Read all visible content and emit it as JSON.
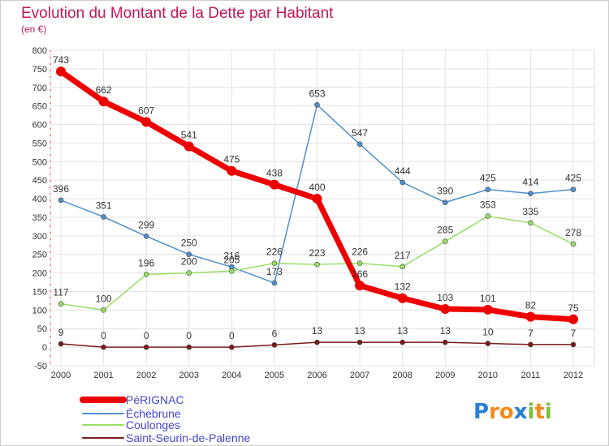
{
  "chart_data": {
    "type": "line",
    "title": "Evolution du Montant de la Dette par Habitant",
    "subtitle": "(en €)",
    "x": [
      "2000",
      "2001",
      "2002",
      "2003",
      "2004",
      "2005",
      "2006",
      "2007",
      "2008",
      "2009",
      "2010",
      "2011",
      "2012"
    ],
    "ylim": [
      -50,
      800
    ],
    "yticks": [
      -50,
      0,
      50,
      100,
      150,
      200,
      250,
      300,
      350,
      400,
      450,
      500,
      550,
      600,
      650,
      700,
      750,
      800
    ],
    "grid": true,
    "legend_position": "bottom-left",
    "series": [
      {
        "name": "PéRIGNAC",
        "color": "#ee0000",
        "values": [
          743,
          662,
          607,
          541,
          475,
          438,
          400,
          166,
          132,
          103,
          101,
          82,
          75
        ]
      },
      {
        "name": "Échebrune",
        "color": "#4f8fcc",
        "values": [
          396,
          351,
          299,
          250,
          216,
          173,
          653,
          547,
          444,
          390,
          425,
          414,
          425
        ]
      },
      {
        "name": "Coulonges",
        "color": "#99dd66",
        "values": [
          117,
          100,
          196,
          200,
          205,
          226,
          223,
          226,
          217,
          285,
          353,
          335,
          278
        ]
      },
      {
        "name": "Saint-Seurin-de-Palenne",
        "color": "#7a1a1a",
        "values": [
          9,
          0,
          0,
          0,
          0,
          6,
          13,
          13,
          13,
          13,
          10,
          7,
          7
        ]
      }
    ]
  },
  "logo": {
    "text": "Proxiti"
  }
}
